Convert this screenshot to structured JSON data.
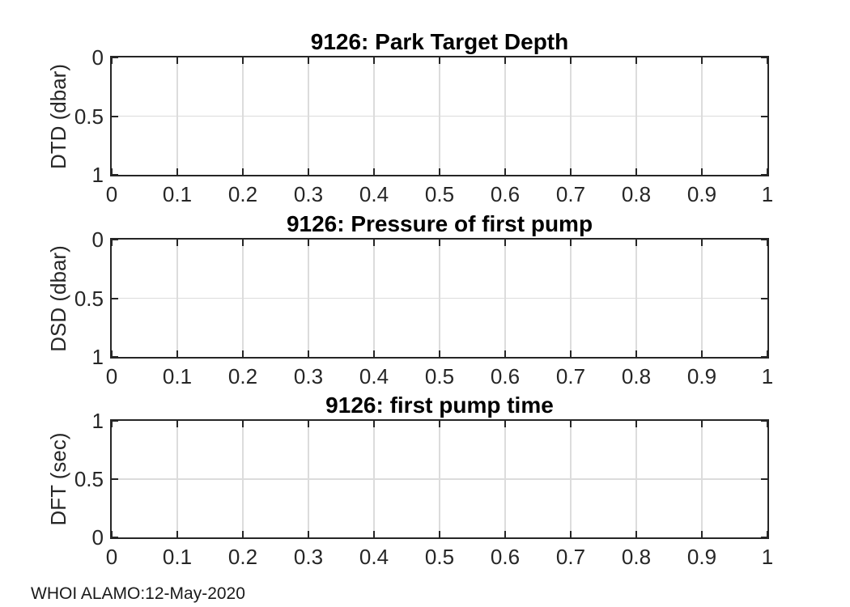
{
  "figure": {
    "background": "#ffffff",
    "footer": {
      "text": "WHOI ALAMO:12-May-2020"
    }
  },
  "colors": {
    "axis": "#262626",
    "tick_text": "#262626",
    "title_text": "#000000",
    "grid": "#dcdcdc",
    "footer_text": "#1a1a1a"
  },
  "chart_data": [
    {
      "type": "line",
      "title": "9126: Park Target Depth",
      "xlabel": "",
      "ylabel": "DTD (dbar)",
      "xlim": [
        0,
        1
      ],
      "ylim": [
        0,
        1
      ],
      "y_direction": "reverse",
      "grid": true,
      "legend": null,
      "xtick_values": [
        0,
        0.1,
        0.2,
        0.3,
        0.4,
        0.5,
        0.6,
        0.7,
        0.8,
        0.9,
        1
      ],
      "xtick_labels": [
        "0",
        "0.1",
        "0.2",
        "0.3",
        "0.4",
        "0.5",
        "0.6",
        "0.7",
        "0.8",
        "0.9",
        "1"
      ],
      "ytick_values": [
        0,
        0.5,
        1
      ],
      "ytick_labels": [
        "0",
        "0.5",
        "1"
      ],
      "series": []
    },
    {
      "type": "line",
      "title": "9126: Pressure of first pump",
      "xlabel": "",
      "ylabel": "DSD (dbar)",
      "xlim": [
        0,
        1
      ],
      "ylim": [
        0,
        1
      ],
      "y_direction": "reverse",
      "grid": true,
      "legend": null,
      "xtick_values": [
        0,
        0.1,
        0.2,
        0.3,
        0.4,
        0.5,
        0.6,
        0.7,
        0.8,
        0.9,
        1
      ],
      "xtick_labels": [
        "0",
        "0.1",
        "0.2",
        "0.3",
        "0.4",
        "0.5",
        "0.6",
        "0.7",
        "0.8",
        "0.9",
        "1"
      ],
      "ytick_values": [
        0,
        0.5,
        1
      ],
      "ytick_labels": [
        "0",
        "0.5",
        "1"
      ],
      "series": []
    },
    {
      "type": "line",
      "title": "9126: first pump time",
      "xlabel": "",
      "ylabel": "DFT (sec)",
      "xlim": [
        0,
        1
      ],
      "ylim": [
        0,
        1
      ],
      "y_direction": "normal",
      "grid": true,
      "legend": null,
      "xtick_values": [
        0,
        0.1,
        0.2,
        0.3,
        0.4,
        0.5,
        0.6,
        0.7,
        0.8,
        0.9,
        1
      ],
      "xtick_labels": [
        "0",
        "0.1",
        "0.2",
        "0.3",
        "0.4",
        "0.5",
        "0.6",
        "0.7",
        "0.8",
        "0.9",
        "1"
      ],
      "ytick_values": [
        0,
        0.5,
        1
      ],
      "ytick_labels": [
        "0",
        "0.5",
        "1"
      ],
      "series": []
    }
  ]
}
